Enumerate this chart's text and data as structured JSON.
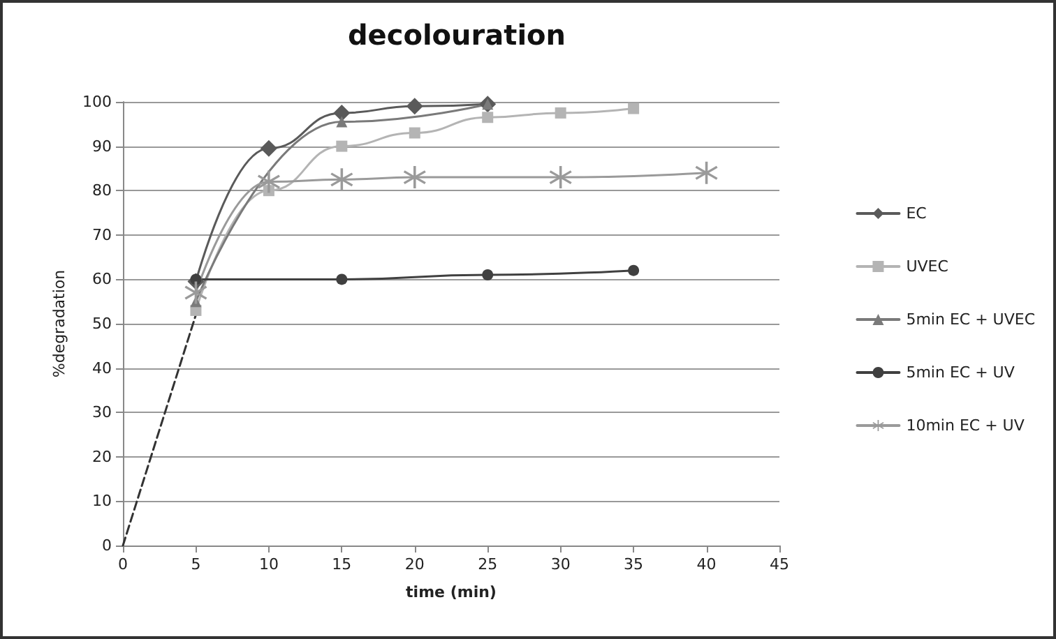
{
  "chart_data": {
    "type": "line",
    "title": "decolouration",
    "xlabel": "time (min)",
    "ylabel": "%degradation",
    "xlim": [
      0,
      45
    ],
    "xticks": [
      0,
      5,
      10,
      15,
      20,
      25,
      30,
      35,
      40,
      45
    ],
    "ylim": [
      0,
      100
    ],
    "yticks": [
      0,
      10,
      20,
      30,
      40,
      50,
      60,
      70,
      80,
      90,
      100
    ],
    "grid": "y",
    "legend": "right",
    "series": [
      {
        "name": "EC",
        "color": "#5a5a5a",
        "marker": "diamond",
        "x": [
          5,
          10,
          15,
          20,
          25
        ],
        "values": [
          59.5,
          89.5,
          97.5,
          99,
          99.5
        ]
      },
      {
        "name": "UVEC",
        "color": "#b4b4b4",
        "marker": "square",
        "x": [
          5,
          10,
          15,
          20,
          25,
          30,
          35
        ],
        "values": [
          53,
          80,
          90,
          93,
          96.5,
          97.5,
          98.5
        ]
      },
      {
        "name": "5min EC + UVEC",
        "color": "#7a7a7a",
        "marker": "triangle",
        "x": [
          5,
          15,
          25
        ],
        "values": [
          55,
          95.5,
          99.5
        ]
      },
      {
        "name": "5min EC + UV",
        "color": "#404040",
        "marker": "circle",
        "x": [
          5,
          15,
          25,
          35
        ],
        "values": [
          60,
          60,
          61,
          62
        ]
      },
      {
        "name": "10min EC + UV",
        "color": "#9a9a9a",
        "marker": "cross",
        "x": [
          5,
          10,
          15,
          20,
          30,
          40
        ],
        "values": [
          57,
          82,
          82.5,
          83,
          83,
          84
        ]
      },
      {
        "color": "#333333",
        "marker": "none",
        "line_style": "dashed",
        "x": [
          0,
          5
        ],
        "values": [
          0,
          52
        ]
      }
    ]
  }
}
